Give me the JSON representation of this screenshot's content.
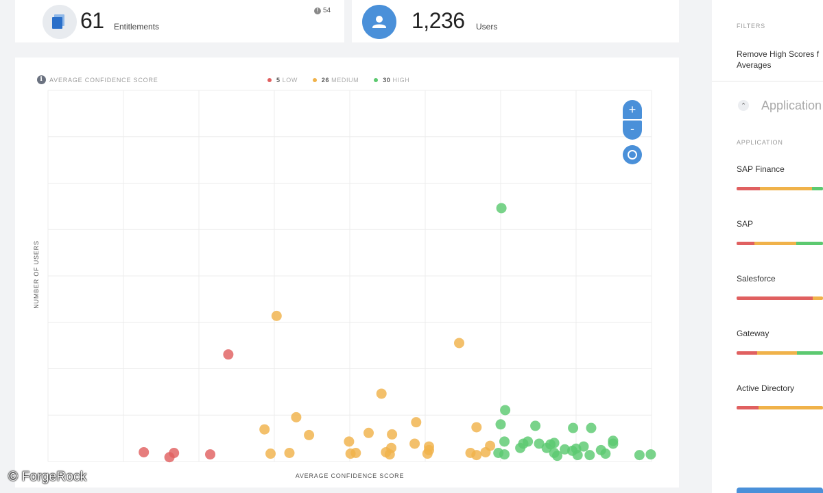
{
  "stats": {
    "entitlements": {
      "value": "61",
      "label": "Entitlements",
      "alert_count": "54"
    },
    "users": {
      "value": "1,236",
      "label": "Users"
    }
  },
  "chart": {
    "title": "AVERAGE CONFIDENCE SCORE",
    "legend": [
      {
        "count": "5",
        "label": "LOW",
        "color": "#e06060"
      },
      {
        "count": "26",
        "label": "MEDIUM",
        "color": "#f0b24a"
      },
      {
        "count": "30",
        "label": "HIGH",
        "color": "#5cc970"
      }
    ],
    "y_title": "NUMBER OF USERS",
    "x_title": "AVERAGE CONFIDENCE SCORE",
    "zoom": {
      "in": "+",
      "out": "-"
    }
  },
  "chart_data": {
    "type": "scatter",
    "x_range": [
      0,
      800
    ],
    "y_range": [
      0,
      520
    ],
    "grid": true,
    "series": [
      {
        "name": "LOW",
        "color": "#e06060",
        "points": [
          [
            127,
            13
          ],
          [
            161,
            6
          ],
          [
            167,
            12
          ],
          [
            215,
            10
          ],
          [
            239,
            150
          ]
        ]
      },
      {
        "name": "MEDIUM",
        "color": "#f0b24a",
        "points": [
          [
            287,
            45
          ],
          [
            295,
            11
          ],
          [
            303,
            204
          ],
          [
            320,
            12
          ],
          [
            329,
            62
          ],
          [
            346,
            37
          ],
          [
            399,
            28
          ],
          [
            401,
            11
          ],
          [
            408,
            12
          ],
          [
            425,
            40
          ],
          [
            442,
            95
          ],
          [
            448,
            13
          ],
          [
            453,
            10
          ],
          [
            455,
            19
          ],
          [
            456,
            38
          ],
          [
            486,
            25
          ],
          [
            488,
            55
          ],
          [
            503,
            11
          ],
          [
            505,
            16
          ],
          [
            505,
            21
          ],
          [
            545,
            166
          ],
          [
            560,
            12
          ],
          [
            568,
            9
          ],
          [
            568,
            48
          ],
          [
            580,
            13
          ],
          [
            586,
            22
          ]
        ]
      },
      {
        "name": "HIGH",
        "color": "#5cc970",
        "points": [
          [
            597,
            12
          ],
          [
            600,
            52
          ],
          [
            601,
            355
          ],
          [
            605,
            10
          ],
          [
            606,
            72
          ],
          [
            605,
            28
          ],
          [
            626,
            19
          ],
          [
            630,
            25
          ],
          [
            636,
            28
          ],
          [
            646,
            50
          ],
          [
            651,
            25
          ],
          [
            661,
            19
          ],
          [
            666,
            24
          ],
          [
            671,
            12
          ],
          [
            671,
            26
          ],
          [
            675,
            8
          ],
          [
            685,
            17
          ],
          [
            695,
            15
          ],
          [
            696,
            47
          ],
          [
            700,
            18
          ],
          [
            702,
            9
          ],
          [
            710,
            21
          ],
          [
            718,
            9
          ],
          [
            720,
            47
          ],
          [
            733,
            16
          ],
          [
            739,
            11
          ],
          [
            749,
            29
          ],
          [
            749,
            25
          ],
          [
            784,
            9
          ],
          [
            799,
            10
          ]
        ]
      }
    ]
  },
  "sidebar": {
    "filters_heading": "FILTERS",
    "filter_text_line1": "Remove High Scores f",
    "filter_text_line2": "Averages",
    "section_title": "Application",
    "column_heading": "APPLICATION",
    "apps": [
      {
        "name": "SAP Finance",
        "dist": [
          0.27,
          0.6,
          0.13
        ]
      },
      {
        "name": "SAP",
        "dist": [
          0.21,
          0.48,
          0.31
        ]
      },
      {
        "name": "Salesforce",
        "dist": [
          0.88,
          0.12,
          0.0
        ]
      },
      {
        "name": "Gateway",
        "dist": [
          0.24,
          0.46,
          0.3
        ]
      },
      {
        "name": "Active Directory",
        "dist": [
          0.25,
          0.75,
          0.0
        ]
      }
    ]
  },
  "watermark": "© ForgeRock"
}
